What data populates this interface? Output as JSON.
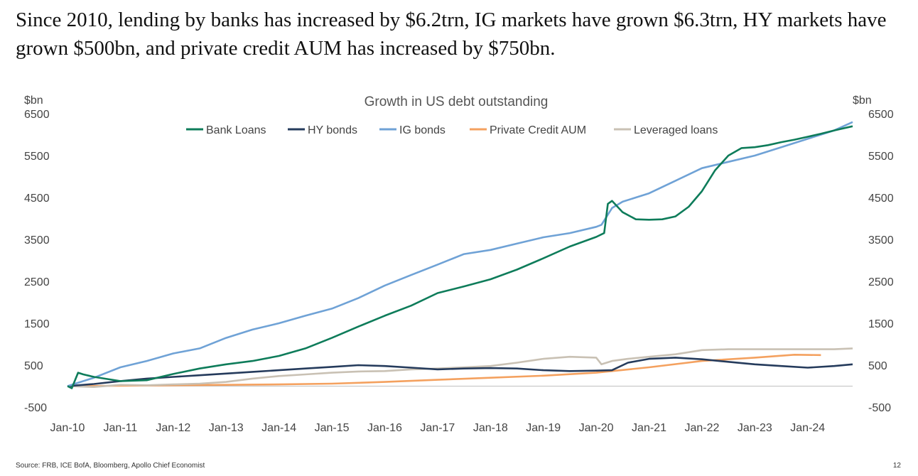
{
  "headline": "Since 2010, lending by banks has increased by $6.2trn, IG markets have grown $6.3trn, HY markets have grown $500bn, and private credit AUM has increased by $750bn.",
  "source": "Source: FRB, ICE BofA, Bloomberg, Apollo Chief Economist",
  "page_number": "12",
  "chart_data": {
    "type": "line",
    "title": "Growth in US debt outstanding",
    "ylabel_left": "$bn",
    "ylabel_right": "$bn",
    "ylim": [
      -500,
      6500
    ],
    "yticks": [
      -500,
      500,
      1500,
      2500,
      3500,
      4500,
      5500,
      6500
    ],
    "yticklabels": [
      "-500",
      "500",
      "1500",
      "2500",
      "3500",
      "4500",
      "5500",
      "6500"
    ],
    "xlim": [
      2010.0,
      2024.85
    ],
    "xticks": [
      2010,
      2011,
      2012,
      2013,
      2014,
      2015,
      2016,
      2017,
      2018,
      2019,
      2020,
      2021,
      2022,
      2023,
      2024
    ],
    "xticklabels": [
      "Jan-10",
      "Jan-11",
      "Jan-12",
      "Jan-13",
      "Jan-14",
      "Jan-15",
      "Jan-16",
      "Jan-17",
      "Jan-18",
      "Jan-19",
      "Jan-20",
      "Jan-21",
      "Jan-22",
      "Jan-23",
      "Jan-24"
    ],
    "legend_position": "top-center",
    "series": [
      {
        "name": "Bank Loans",
        "color": "#0e7c5a",
        "x": [
          2010.0,
          2010.08,
          2010.2,
          2010.3,
          2010.5,
          2010.7,
          2011.0,
          2011.5,
          2012.0,
          2012.5,
          2013.0,
          2013.5,
          2014.0,
          2014.5,
          2015.0,
          2015.5,
          2016.0,
          2016.5,
          2017.0,
          2017.5,
          2018.0,
          2018.5,
          2019.0,
          2019.5,
          2020.0,
          2020.15,
          2020.22,
          2020.3,
          2020.5,
          2020.75,
          2021.0,
          2021.25,
          2021.5,
          2021.75,
          2022.0,
          2022.25,
          2022.5,
          2022.75,
          2023.0,
          2023.25,
          2023.5,
          2023.75,
          2024.0,
          2024.25,
          2024.5,
          2024.85
        ],
        "values": [
          0,
          -50,
          320,
          280,
          220,
          180,
          120,
          140,
          290,
          420,
          520,
          600,
          720,
          900,
          1150,
          1420,
          1680,
          1920,
          2220,
          2380,
          2550,
          2780,
          3050,
          3330,
          3560,
          3650,
          4350,
          4420,
          4150,
          3980,
          3970,
          3980,
          4050,
          4280,
          4650,
          5150,
          5500,
          5680,
          5700,
          5750,
          5820,
          5880,
          5950,
          6020,
          6100,
          6200
        ]
      },
      {
        "name": "HY bonds",
        "color": "#253b5c",
        "x": [
          2010.0,
          2010.5,
          2011.0,
          2011.5,
          2012.0,
          2012.5,
          2013.0,
          2013.5,
          2014.0,
          2014.5,
          2015.0,
          2015.5,
          2016.0,
          2016.5,
          2017.0,
          2017.5,
          2018.0,
          2018.5,
          2019.0,
          2019.5,
          2020.0,
          2020.3,
          2020.6,
          2021.0,
          2021.5,
          2022.0,
          2022.5,
          2023.0,
          2023.5,
          2024.0,
          2024.5,
          2024.85
        ],
        "values": [
          0,
          50,
          120,
          180,
          220,
          260,
          300,
          340,
          380,
          420,
          460,
          500,
          480,
          440,
          400,
          420,
          430,
          420,
          380,
          360,
          370,
          380,
          560,
          650,
          680,
          640,
          580,
          520,
          480,
          440,
          480,
          520
        ]
      },
      {
        "name": "IG bonds",
        "color": "#6fa2d6",
        "x": [
          2010.0,
          2010.5,
          2011.0,
          2011.5,
          2012.0,
          2012.5,
          2013.0,
          2013.5,
          2014.0,
          2014.5,
          2015.0,
          2015.5,
          2016.0,
          2016.5,
          2017.0,
          2017.5,
          2018.0,
          2018.5,
          2019.0,
          2019.5,
          2020.0,
          2020.1,
          2020.3,
          2020.5,
          2020.75,
          2021.0,
          2021.5,
          2022.0,
          2022.5,
          2023.0,
          2023.5,
          2024.0,
          2024.5,
          2024.85
        ],
        "values": [
          0,
          200,
          450,
          600,
          780,
          900,
          1150,
          1350,
          1500,
          1680,
          1850,
          2100,
          2400,
          2650,
          2900,
          3150,
          3250,
          3400,
          3550,
          3650,
          3800,
          3850,
          4250,
          4400,
          4500,
          4600,
          4900,
          5200,
          5350,
          5500,
          5700,
          5900,
          6100,
          6300
        ]
      },
      {
        "name": "Private Credit AUM",
        "color": "#f4a15f",
        "x": [
          2010.0,
          2011.0,
          2012.0,
          2013.0,
          2014.0,
          2015.0,
          2016.0,
          2017.0,
          2018.0,
          2019.0,
          2020.0,
          2021.0,
          2022.0,
          2023.0,
          2023.75,
          2024.25
        ],
        "values": [
          0,
          10,
          20,
          30,
          40,
          60,
          100,
          150,
          200,
          250,
          320,
          450,
          600,
          680,
          750,
          740
        ]
      },
      {
        "name": "Leveraged loans",
        "color": "#c9c1b4",
        "x": [
          2010.0,
          2010.5,
          2011.0,
          2011.5,
          2012.0,
          2012.5,
          2013.0,
          2013.5,
          2014.0,
          2014.5,
          2015.0,
          2015.5,
          2016.0,
          2016.5,
          2017.0,
          2017.5,
          2018.0,
          2018.5,
          2019.0,
          2019.5,
          2020.0,
          2020.1,
          2020.3,
          2020.6,
          2021.0,
          2021.5,
          2022.0,
          2022.5,
          2023.0,
          2023.5,
          2024.0,
          2024.5,
          2024.85
        ],
        "values": [
          0,
          -20,
          30,
          20,
          40,
          60,
          100,
          180,
          240,
          280,
          320,
          350,
          360,
          400,
          420,
          450,
          480,
          560,
          650,
          700,
          680,
          520,
          600,
          650,
          700,
          760,
          860,
          880,
          880,
          880,
          880,
          880,
          900
        ]
      }
    ]
  }
}
